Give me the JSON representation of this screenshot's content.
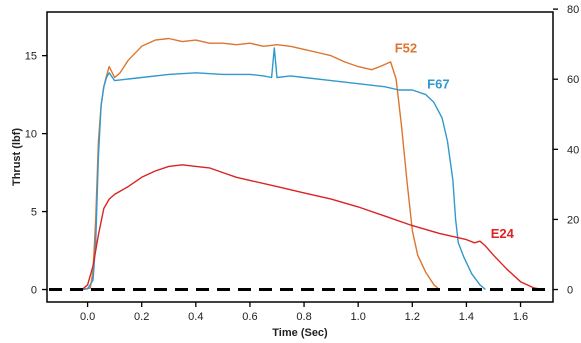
{
  "chart_data": {
    "type": "line",
    "xlabel": "Time (Sec)",
    "ylabel": "Thrust (lbf)",
    "xlim": [
      -0.15,
      1.72
    ],
    "ylim": [
      -0.8,
      17.8
    ],
    "xticks": [
      0.0,
      0.2,
      0.4,
      0.6,
      0.8,
      1.0,
      1.2,
      1.4,
      1.6
    ],
    "xtick_labels": [
      "0.0",
      "0.2",
      "0.4",
      "0.6",
      "0.8",
      "1.0",
      "1.2",
      "1.4",
      "1.6"
    ],
    "yticks": [
      0,
      5,
      10,
      15
    ],
    "ytick_labels": [
      "0",
      "5",
      "10",
      "15"
    ],
    "y2ticks": [
      0,
      20,
      40,
      60,
      80
    ],
    "y2tick_labels": [
      "0",
      "20",
      "40",
      "60",
      "80"
    ],
    "y2_units_per_y1": 4.448,
    "grid": false,
    "baseline": {
      "y": 0,
      "style": "dashed",
      "color": "#000000"
    },
    "series": [
      {
        "name": "F52",
        "color": "#DD7530",
        "label_at": [
          1.135,
          15.2
        ],
        "points": [
          [
            -0.02,
            0
          ],
          [
            0.01,
            0.1
          ],
          [
            0.02,
            1.2
          ],
          [
            0.03,
            4.5
          ],
          [
            0.04,
            9.5
          ],
          [
            0.05,
            11.8
          ],
          [
            0.06,
            13
          ],
          [
            0.07,
            13.7
          ],
          [
            0.08,
            14.3
          ],
          [
            0.1,
            13.6
          ],
          [
            0.12,
            13.9
          ],
          [
            0.15,
            14.7
          ],
          [
            0.2,
            15.6
          ],
          [
            0.25,
            16
          ],
          [
            0.3,
            16.1
          ],
          [
            0.35,
            15.9
          ],
          [
            0.4,
            16
          ],
          [
            0.45,
            15.8
          ],
          [
            0.5,
            15.8
          ],
          [
            0.55,
            15.7
          ],
          [
            0.6,
            15.8
          ],
          [
            0.65,
            15.6
          ],
          [
            0.7,
            15.7
          ],
          [
            0.75,
            15.6
          ],
          [
            0.8,
            15.4
          ],
          [
            0.85,
            15.2
          ],
          [
            0.9,
            15
          ],
          [
            0.95,
            14.6
          ],
          [
            1.0,
            14.3
          ],
          [
            1.05,
            14.1
          ],
          [
            1.08,
            14.3
          ],
          [
            1.12,
            14.6
          ],
          [
            1.14,
            13.5
          ],
          [
            1.16,
            10.5
          ],
          [
            1.18,
            7
          ],
          [
            1.2,
            3.8
          ],
          [
            1.22,
            2.2
          ],
          [
            1.25,
            1.1
          ],
          [
            1.28,
            0.3
          ],
          [
            1.3,
            0
          ]
        ]
      },
      {
        "name": "F67",
        "color": "#3399CC",
        "label_at": [
          1.255,
          12.9
        ],
        "points": [
          [
            -0.02,
            0
          ],
          [
            0.0,
            0.05
          ],
          [
            0.02,
            0.6
          ],
          [
            0.03,
            3
          ],
          [
            0.04,
            8.5
          ],
          [
            0.05,
            11.8
          ],
          [
            0.06,
            13
          ],
          [
            0.07,
            13.6
          ],
          [
            0.08,
            13.9
          ],
          [
            0.1,
            13.4
          ],
          [
            0.15,
            13.5
          ],
          [
            0.2,
            13.6
          ],
          [
            0.3,
            13.8
          ],
          [
            0.4,
            13.9
          ],
          [
            0.5,
            13.8
          ],
          [
            0.6,
            13.8
          ],
          [
            0.65,
            13.7
          ],
          [
            0.68,
            13.6
          ],
          [
            0.69,
            15.5
          ],
          [
            0.7,
            13.6
          ],
          [
            0.75,
            13.7
          ],
          [
            0.8,
            13.6
          ],
          [
            0.9,
            13.4
          ],
          [
            1.0,
            13.2
          ],
          [
            1.1,
            13
          ],
          [
            1.15,
            12.8
          ],
          [
            1.2,
            12.8
          ],
          [
            1.25,
            12.5
          ],
          [
            1.28,
            12
          ],
          [
            1.31,
            11
          ],
          [
            1.33,
            9.5
          ],
          [
            1.35,
            7
          ],
          [
            1.36,
            4.5
          ],
          [
            1.37,
            3
          ],
          [
            1.39,
            2.1
          ],
          [
            1.42,
            1
          ],
          [
            1.45,
            0.3
          ],
          [
            1.47,
            0
          ]
        ]
      },
      {
        "name": "E24",
        "color": "#DD2222",
        "label_at": [
          1.49,
          3.3
        ],
        "points": [
          [
            -0.02,
            0
          ],
          [
            0.0,
            0.3
          ],
          [
            0.02,
            1.5
          ],
          [
            0.04,
            3.5
          ],
          [
            0.06,
            5.2
          ],
          [
            0.08,
            5.8
          ],
          [
            0.1,
            6.1
          ],
          [
            0.15,
            6.6
          ],
          [
            0.2,
            7.2
          ],
          [
            0.25,
            7.6
          ],
          [
            0.3,
            7.9
          ],
          [
            0.35,
            8
          ],
          [
            0.4,
            7.9
          ],
          [
            0.45,
            7.8
          ],
          [
            0.5,
            7.5
          ],
          [
            0.55,
            7.2
          ],
          [
            0.6,
            7
          ],
          [
            0.7,
            6.6
          ],
          [
            0.8,
            6.2
          ],
          [
            0.9,
            5.8
          ],
          [
            1.0,
            5.3
          ],
          [
            1.1,
            4.7
          ],
          [
            1.2,
            4.1
          ],
          [
            1.3,
            3.6
          ],
          [
            1.4,
            3.2
          ],
          [
            1.43,
            3
          ],
          [
            1.45,
            3.1
          ],
          [
            1.47,
            2.8
          ],
          [
            1.5,
            2.2
          ],
          [
            1.55,
            1.3
          ],
          [
            1.6,
            0.5
          ],
          [
            1.65,
            0.1
          ],
          [
            1.68,
            0
          ]
        ]
      }
    ]
  }
}
